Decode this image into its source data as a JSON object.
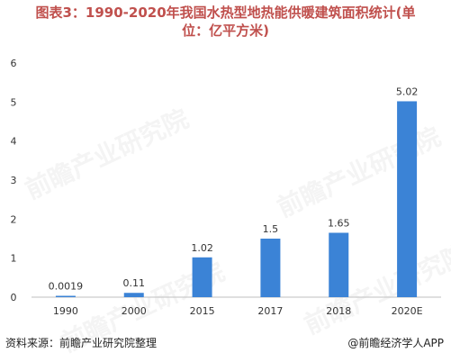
{
  "page": {
    "title_line1": "图表3：1990-2020年我国水热型地热能供暖建筑面积统计(单",
    "title_line2": "位：亿平方米)",
    "source": "资料来源：前瞻产业研究院整理",
    "brand": "@前瞻经济学人APP",
    "watermark": "前瞻产业研究院"
  },
  "chart_data": {
    "type": "bar",
    "categories": [
      "1990",
      "2000",
      "2015",
      "2017",
      "2018",
      "2020E"
    ],
    "values": [
      0.0019,
      0.11,
      1.02,
      1.5,
      1.65,
      5.02
    ],
    "value_labels": [
      "0.0019",
      "0.11",
      "1.02",
      "1.5",
      "1.65",
      "5.02"
    ],
    "yticks": [
      "0",
      "1",
      "2",
      "3",
      "4",
      "5",
      "6"
    ],
    "ylim": [
      0,
      6
    ],
    "grid": false,
    "legend": "none",
    "bar_color": "#3b83d6"
  }
}
